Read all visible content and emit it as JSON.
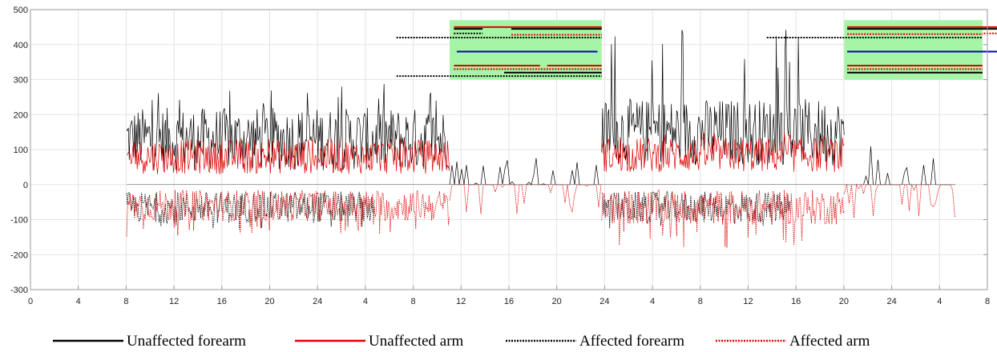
{
  "chart_data": {
    "type": "line",
    "title": "",
    "xlabel": "",
    "ylabel": "",
    "grid": true,
    "ylim": [
      -300,
      500
    ],
    "xlim": [
      0,
      8
    ],
    "y_ticks": [
      -300,
      -200,
      -100,
      0,
      100,
      200,
      300,
      400,
      500
    ],
    "x_tick_labels": [
      "0",
      "4",
      "8",
      "12",
      "16",
      "20",
      "24",
      "4",
      "8",
      "12",
      "16",
      "20",
      "24",
      "4",
      "8",
      "12",
      "16",
      "20",
      "24",
      "4",
      "8"
    ],
    "legend_position": "bottom",
    "colors": {
      "unaffected_forearm": "#000000",
      "unaffected_arm": "#e00000",
      "affected_forearm": "#000000",
      "affected_arm": "#e00000",
      "highlight_band": "#a6f5a6",
      "activity_bar": "#0000cc"
    },
    "series": [
      {
        "name": "Unaffected forearm",
        "style": "solid",
        "color": "#000000",
        "segments": [
          {
            "x_start": 0.67,
            "x_end": 2.92,
            "mean": 130,
            "amp": 90,
            "peak": 290
          },
          {
            "x_start": 2.92,
            "x_end": 3.98,
            "mean": 5,
            "amp": 60,
            "peak": 95,
            "sparse": true
          },
          {
            "x_start": 3.98,
            "x_end": 5.67,
            "mean": 150,
            "amp": 95,
            "peak": 450
          },
          {
            "x_start": 5.67,
            "x_end": 6.92,
            "mean": 5,
            "amp": 60,
            "peak": 110,
            "sparse": true
          },
          {
            "x_start": 6.92,
            "x_end": 8.45,
            "mean": 120,
            "amp": 80,
            "peak": 295
          },
          {
            "x_start": 8.45,
            "x_end": 9.0,
            "mean": 5,
            "amp": 50,
            "peak": 120,
            "sparse": true
          }
        ]
      },
      {
        "name": "Unaffected arm",
        "style": "solid",
        "color": "#e00000",
        "segments": [
          {
            "x_start": 0.67,
            "x_end": 2.92,
            "mean": 80,
            "amp": 50,
            "peak": 140
          },
          {
            "x_start": 3.98,
            "x_end": 5.67,
            "mean": 85,
            "amp": 50,
            "peak": 150
          },
          {
            "x_start": 6.92,
            "x_end": 8.45,
            "mean": 70,
            "amp": 45,
            "peak": 130
          }
        ]
      },
      {
        "name": "Affected forearm",
        "style": "dotted",
        "color": "#000000",
        "segments": [
          {
            "x_start": 0.67,
            "x_end": 2.4,
            "mean": -65,
            "amp": 45,
            "peak": -130
          },
          {
            "x_start": 3.98,
            "x_end": 5.3,
            "mean": -65,
            "amp": 45,
            "peak": -130
          }
        ]
      },
      {
        "name": "Affected arm",
        "style": "dotted",
        "color": "#e00000",
        "segments": [
          {
            "x_start": 0.67,
            "x_end": 2.92,
            "mean": -60,
            "amp": 45,
            "peak": -150
          },
          {
            "x_start": 2.92,
            "x_end": 3.98,
            "mean": -10,
            "amp": 55,
            "peak": -100,
            "sparse": true
          },
          {
            "x_start": 3.98,
            "x_end": 5.67,
            "mean": -65,
            "amp": 50,
            "peak": -180
          },
          {
            "x_start": 5.67,
            "x_end": 6.92,
            "mean": -10,
            "amp": 50,
            "peak": -100,
            "sparse": true
          },
          {
            "x_start": 6.92,
            "x_end": 8.45,
            "mean": -60,
            "amp": 45,
            "peak": -150
          },
          {
            "x_start": 8.45,
            "x_end": 9.0,
            "mean": -10,
            "amp": 45,
            "peak": -100,
            "sparse": true
          }
        ]
      }
    ],
    "highlight_bands": [
      {
        "x_start": 2.92,
        "x_end": 3.98,
        "y_low": 300,
        "y_high": 470
      },
      {
        "x_start": 5.67,
        "x_end": 6.92,
        "y_low": 300,
        "y_high": 470
      },
      {
        "x_start": 8.45,
        "x_end": 9.0,
        "y_low": 300,
        "y_high": 470
      }
    ],
    "activity_bars": [
      {
        "style": "dotted",
        "color": "#000000",
        "y": 420,
        "x_start": 2.55,
        "x_end": 3.98
      },
      {
        "style": "dotted",
        "color": "#000000",
        "y": 310,
        "x_start": 2.55,
        "x_end": 3.98
      },
      {
        "style": "dotted",
        "color": "#000000",
        "y": 420,
        "x_start": 5.13,
        "x_end": 8.95
      },
      {
        "style": "solid",
        "color": "#000000",
        "y": 445,
        "x_start": 2.95,
        "x_end": 3.15
      },
      {
        "style": "solid",
        "color": "#000000",
        "y": 445,
        "x_start": 3.35,
        "x_end": 3.98
      },
      {
        "style": "solid",
        "color": "#e00000",
        "y": 450,
        "x_start": 2.95,
        "x_end": 3.98
      },
      {
        "style": "dotted",
        "color": "#000000",
        "y": 432,
        "x_start": 2.95,
        "x_end": 3.15
      },
      {
        "style": "dotted",
        "color": "#e00000",
        "y": 428,
        "x_start": 3.35,
        "x_end": 3.98
      },
      {
        "style": "solid",
        "color": "#0000cc",
        "y": 380,
        "x_start": 2.97,
        "x_end": 3.95
      },
      {
        "style": "solid",
        "color": "#e00000",
        "y": 340,
        "x_start": 2.95,
        "x_end": 3.55
      },
      {
        "style": "solid",
        "color": "#e00000",
        "y": 340,
        "x_start": 3.6,
        "x_end": 3.98
      },
      {
        "style": "dotted",
        "color": "#e00000",
        "y": 330,
        "x_start": 2.95,
        "x_end": 3.98
      },
      {
        "style": "solid",
        "color": "#000000",
        "y": 320,
        "x_start": 3.3,
        "x_end": 3.98
      },
      {
        "style": "solid",
        "color": "#000000",
        "y": 445,
        "x_start": 5.69,
        "x_end": 6.9
      },
      {
        "style": "solid",
        "color": "#e00000",
        "y": 450,
        "x_start": 5.69,
        "x_end": 6.9
      },
      {
        "style": "dotted",
        "color": "#e00000",
        "y": 430,
        "x_start": 5.69,
        "x_end": 6.9
      },
      {
        "style": "solid",
        "color": "#0000cc",
        "y": 380,
        "x_start": 5.69,
        "x_end": 6.9
      },
      {
        "style": "solid",
        "color": "#e00000",
        "y": 340,
        "x_start": 5.69,
        "x_end": 6.9
      },
      {
        "style": "dotted",
        "color": "#e00000",
        "y": 330,
        "x_start": 5.69,
        "x_end": 6.9
      },
      {
        "style": "solid",
        "color": "#000000",
        "y": 320,
        "x_start": 5.69,
        "x_end": 6.9
      },
      {
        "style": "solid",
        "color": "#000000",
        "y": 445,
        "x_start": 8.47,
        "x_end": 8.98
      },
      {
        "style": "solid",
        "color": "#e00000",
        "y": 450,
        "x_start": 8.47,
        "x_end": 8.98
      },
      {
        "style": "dotted",
        "color": "#e00000",
        "y": 432,
        "x_start": 8.47,
        "x_end": 8.98
      },
      {
        "style": "solid",
        "color": "#0000cc",
        "y": 380,
        "x_start": 8.47,
        "x_end": 8.98
      }
    ],
    "legend": [
      {
        "label": "Unaffected forearm",
        "style": "solid",
        "color": "#000000"
      },
      {
        "label": "Unaffected arm",
        "style": "solid",
        "color": "#e00000"
      },
      {
        "label": "Affected forearm",
        "style": "dotted",
        "color": "#000000"
      },
      {
        "label": "Affected arm",
        "style": "dotted",
        "color": "#e00000"
      }
    ]
  }
}
